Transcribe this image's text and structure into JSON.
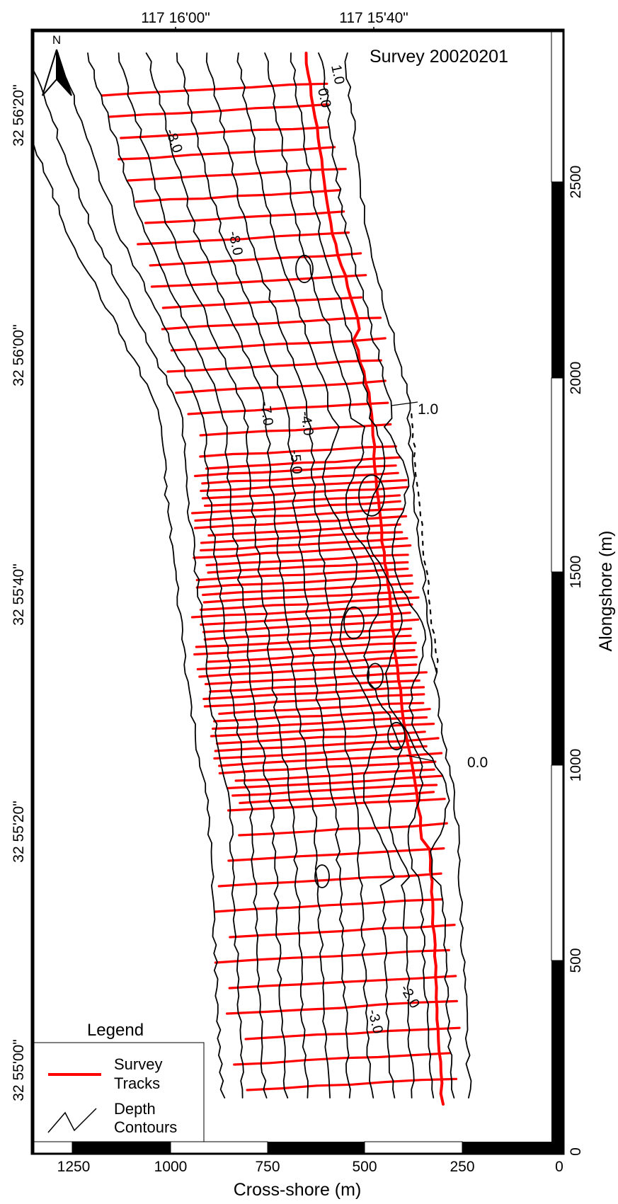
{
  "title": "Survey 20020201",
  "north_arrow": {
    "label": "N",
    "icon": "north-arrow-icon"
  },
  "lon_labels": [
    "117 16'00\"",
    "117 15'40\""
  ],
  "lat_labels": [
    "32 56'20\"",
    "32 56'00\"",
    "32 55'40\"",
    "32 55'20\"",
    "32 55'00\""
  ],
  "x_axis": {
    "label": "Cross-shore (m)",
    "ticks": [
      "1250",
      "1000",
      "750",
      "500",
      "250",
      "0"
    ]
  },
  "y_axis": {
    "label": "Alongshore (m)",
    "ticks": [
      "0",
      "500",
      "1000",
      "1500",
      "2000",
      "2500"
    ]
  },
  "legend": {
    "title": "Legend",
    "items": [
      {
        "label_line1": "Survey",
        "label_line2": "Tracks",
        "icon": "red-track-line-icon"
      },
      {
        "label_line1": "Depth",
        "label_line2": "Contours",
        "icon": "contour-line-icon"
      }
    ]
  },
  "contour_labels": [
    "1.0",
    "0.0",
    "-8.0",
    "-8.0",
    "-7.0",
    "-4.0",
    "-5.0",
    "1.0",
    "0.0",
    "-3.0",
    "-2.0"
  ],
  "colors": {
    "track": "#ff0000",
    "contour": "#000000",
    "frame": "#000000",
    "background": "#ffffff"
  }
}
